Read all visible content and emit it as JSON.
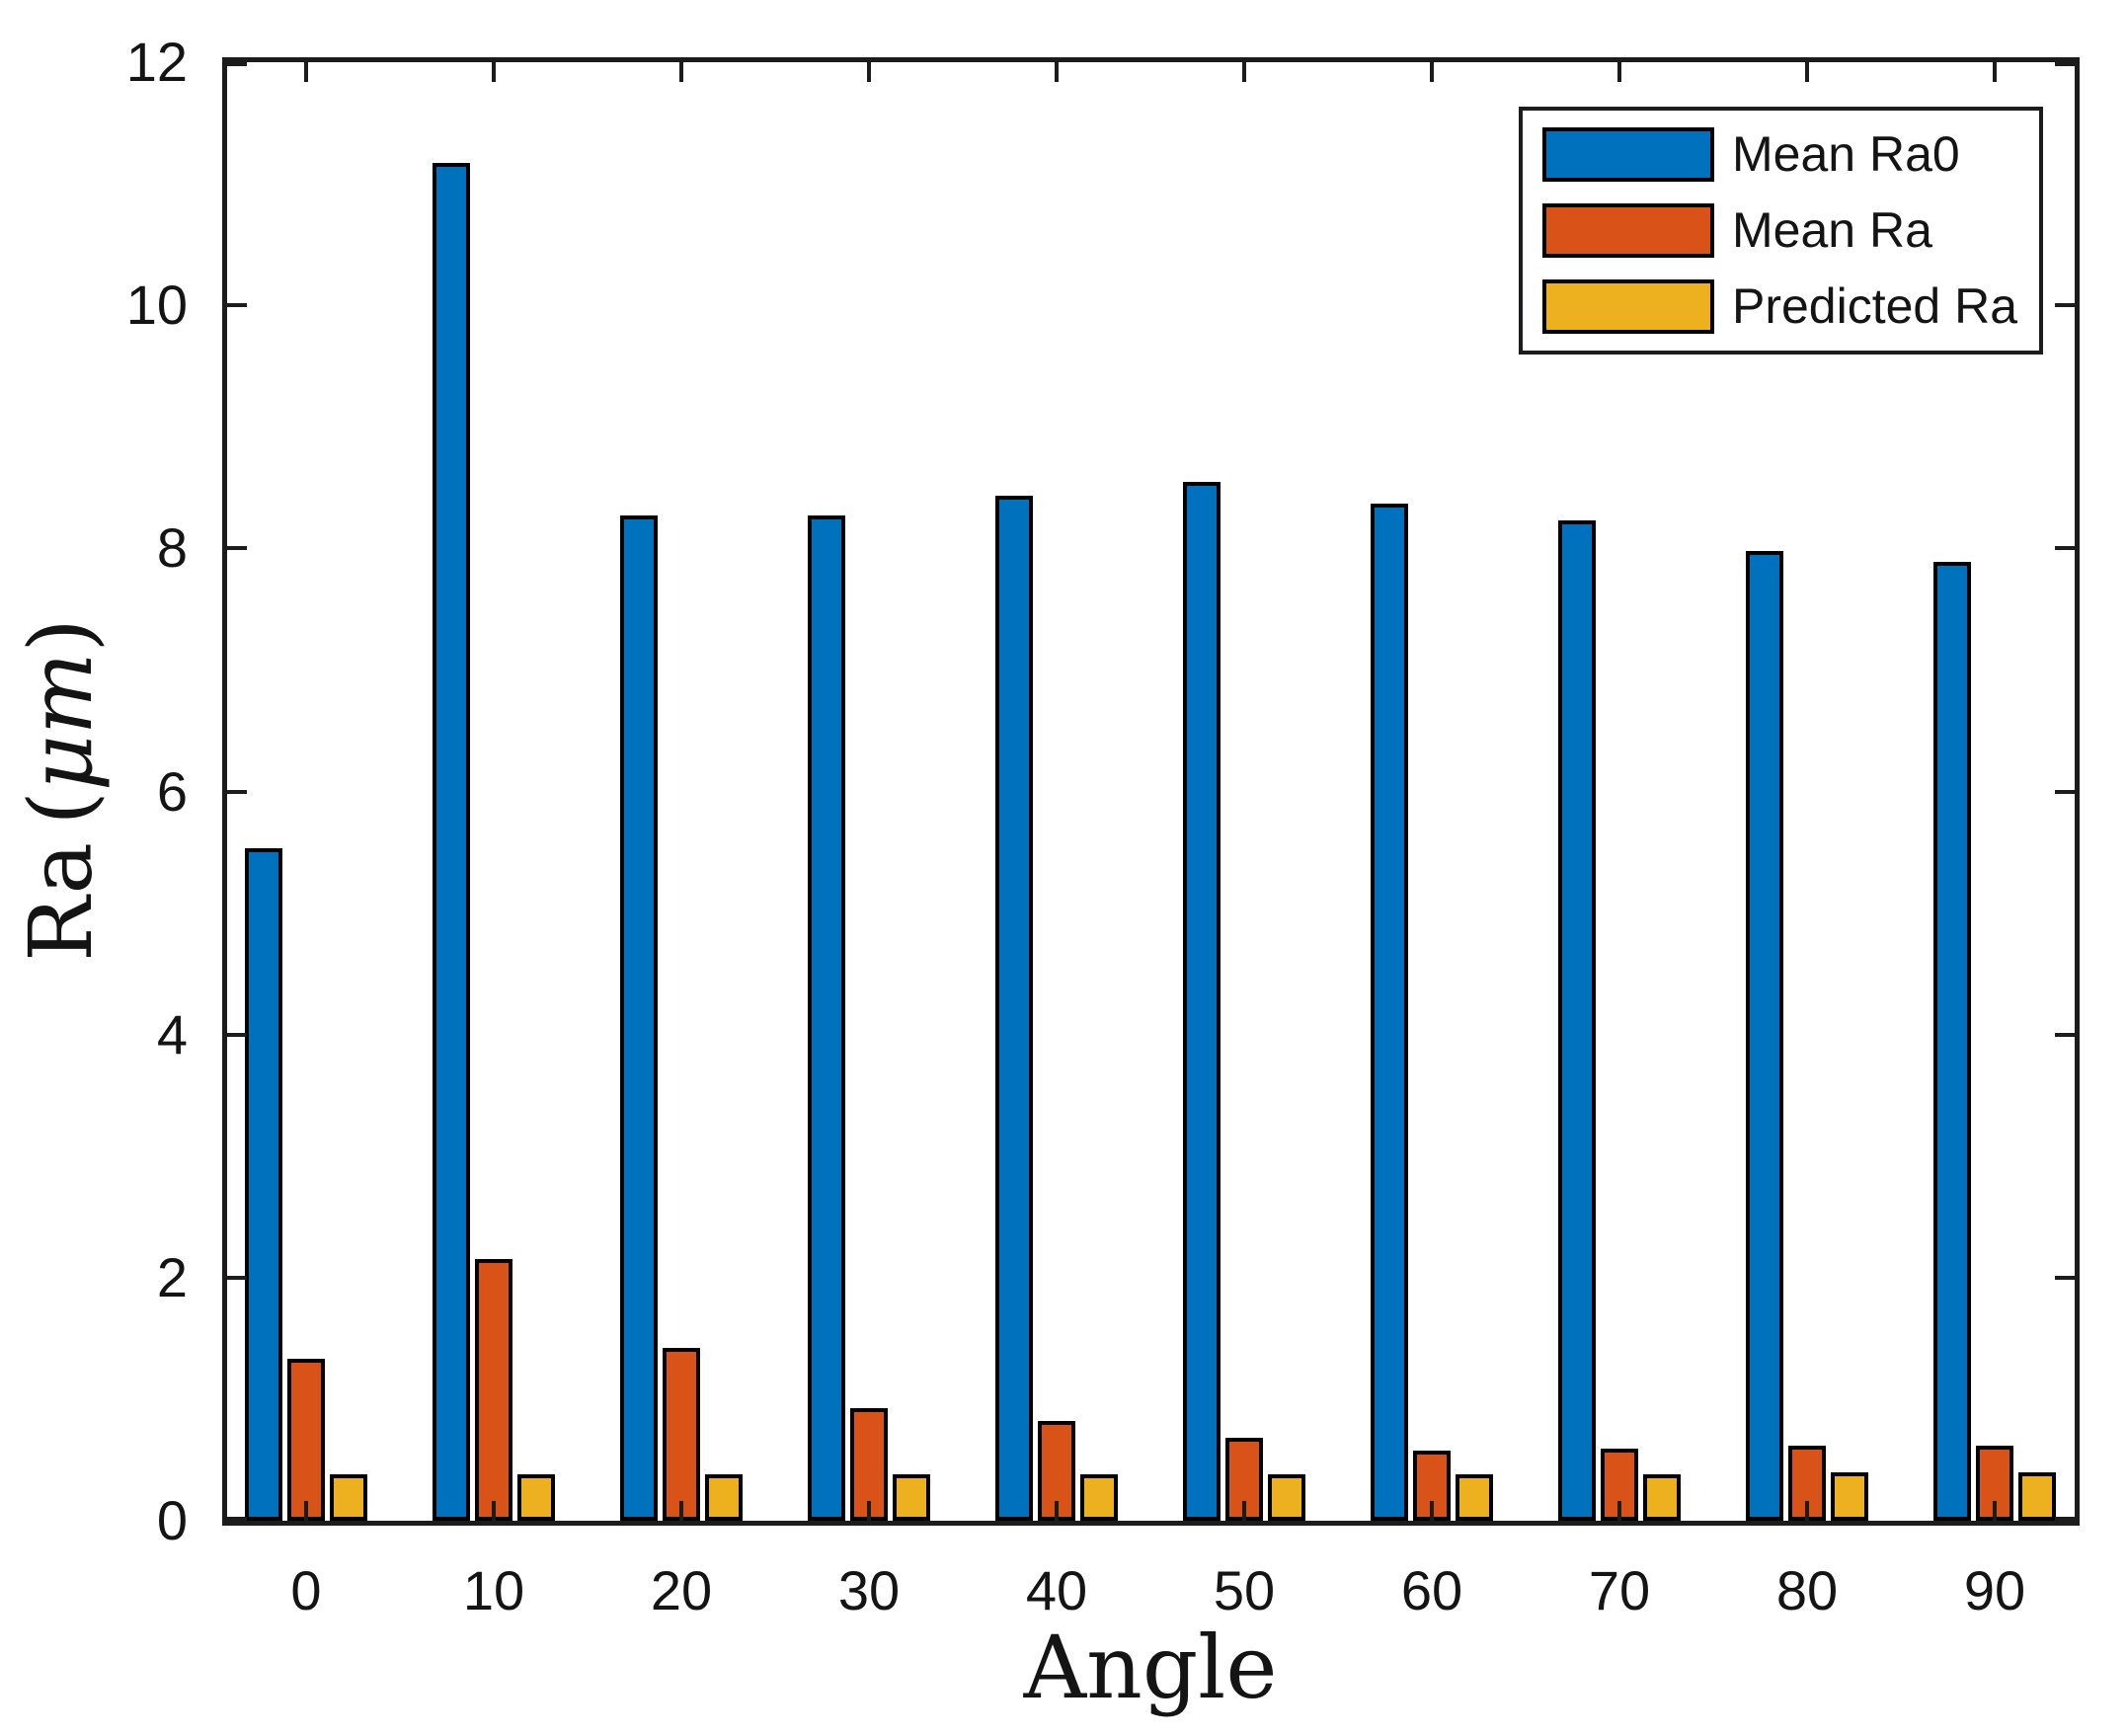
{
  "figure": {
    "background": "#ffffff",
    "frame_color": "#1c1c1c",
    "text_color": "#141414"
  },
  "chart_data": {
    "type": "bar",
    "title": "",
    "xlabel": "Angle",
    "ylabel": "Ra (μm)",
    "ylabel_name": "Ra",
    "ylabel_unit": "μm",
    "categories": [
      0,
      10,
      20,
      30,
      40,
      50,
      60,
      70,
      80,
      90
    ],
    "series": [
      {
        "name": "Mean Ra0",
        "color": "#0072BD",
        "values": [
          5.53,
          11.17,
          8.27,
          8.27,
          8.43,
          8.55,
          8.37,
          8.23,
          7.98,
          7.89
        ]
      },
      {
        "name": "Mean Ra",
        "color": "#D95319",
        "values": [
          1.33,
          2.15,
          1.42,
          0.93,
          0.82,
          0.68,
          0.58,
          0.59,
          0.62,
          0.62
        ]
      },
      {
        "name": "Predicted Ra",
        "color": "#EDB120",
        "values": [
          0.38,
          0.38,
          0.38,
          0.38,
          0.38,
          0.38,
          0.38,
          0.38,
          0.4,
          0.4
        ]
      }
    ],
    "bar_edge_color": "#000000",
    "ylim": [
      0,
      12
    ],
    "y_ticks": [
      0,
      2,
      4,
      6,
      8,
      10,
      12
    ],
    "grid": false,
    "legend_position": "top-right",
    "legend_entries": [
      "Mean Ra0",
      "Mean Ra",
      "Predicted Ra"
    ]
  }
}
